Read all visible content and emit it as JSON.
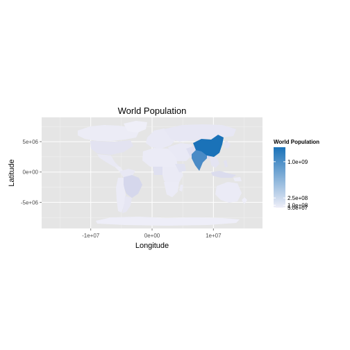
{
  "chart_data": {
    "type": "choropleth",
    "title": "World Population",
    "xlabel": "Longitude",
    "ylabel": "Latitude",
    "x_ticks": [
      {
        "value": -10000000,
        "label": "-1e+07"
      },
      {
        "value": 0,
        "label": "0e+00"
      },
      {
        "value": 10000000,
        "label": "1e+07"
      }
    ],
    "y_ticks": [
      {
        "value": 5000000,
        "label": "5e+06"
      },
      {
        "value": 0,
        "label": "0e+00"
      },
      {
        "value": -5000000,
        "label": "-5e+06"
      }
    ],
    "xlim": [
      -18000000,
      18000000
    ],
    "ylim": [
      -9300000,
      9000000
    ],
    "grid": true,
    "legend": {
      "title": "World Population",
      "placement": "right",
      "range": [
        50000000,
        1300000000
      ],
      "low_color": "#eeeef8",
      "high_color": "#1a72b8",
      "breaks": [
        {
          "value": 1000000000,
          "label": "1.0e+09"
        },
        {
          "value": 250000000,
          "label": "2.5e+08"
        },
        {
          "value": 100000000,
          "label": "1.0e+08"
        },
        {
          "value": 50000000,
          "label": "5.0e+07"
        }
      ]
    },
    "colors": {
      "panel": "#e5e5e5",
      "grid_major": "#ffffff",
      "grid_minor": "#f2f2f2"
    }
  }
}
